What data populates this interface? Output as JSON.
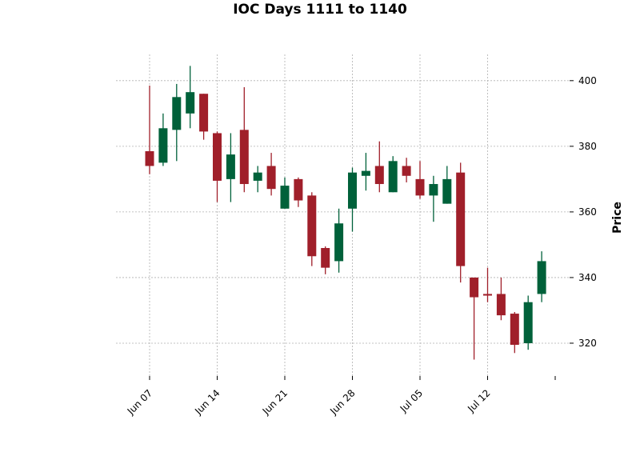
{
  "chart_data": {
    "type": "candlestick",
    "title": "IOC Days 1111 to 1140",
    "xlabel": "",
    "ylabel": "Price",
    "ylim": [
      310,
      408
    ],
    "yticks": [
      320,
      340,
      360,
      380,
      400
    ],
    "xtick_labels": [
      {
        "label": "Jun 07",
        "date": "2021-06-07"
      },
      {
        "label": "Jun 14",
        "date": "2021-06-14"
      },
      {
        "label": "Jun 21",
        "date": "2021-06-21"
      },
      {
        "label": "Jun 28",
        "date": "2021-06-28"
      },
      {
        "label": "Jul 05",
        "date": "2021-07-05"
      },
      {
        "label": "Jul 12",
        "date": "2021-07-12"
      }
    ],
    "grid": true,
    "colors": {
      "up": "#00613a",
      "down": "#a01f2a",
      "grid": "#b0b0b0"
    },
    "candles": [
      {
        "date": "2021-06-07",
        "open": 378.5,
        "high": 398.5,
        "low": 371.5,
        "close": 374.0
      },
      {
        "date": "2021-06-08",
        "open": 375.0,
        "high": 390.0,
        "low": 374.0,
        "close": 385.5
      },
      {
        "date": "2021-06-09",
        "open": 385.0,
        "high": 399.0,
        "low": 375.5,
        "close": 395.0
      },
      {
        "date": "2021-06-10",
        "open": 390.0,
        "high": 404.5,
        "low": 385.5,
        "close": 396.5
      },
      {
        "date": "2021-06-11",
        "open": 396.0,
        "high": 396.0,
        "low": 382.0,
        "close": 384.5
      },
      {
        "date": "2021-06-14",
        "open": 384.0,
        "high": 384.5,
        "low": 363.0,
        "close": 369.5
      },
      {
        "date": "2021-06-15",
        "open": 370.0,
        "high": 384.0,
        "low": 363.0,
        "close": 377.5
      },
      {
        "date": "2021-06-16",
        "open": 385.0,
        "high": 398.0,
        "low": 366.0,
        "close": 368.5
      },
      {
        "date": "2021-06-17",
        "open": 369.5,
        "high": 374.0,
        "low": 366.0,
        "close": 372.0
      },
      {
        "date": "2021-06-18",
        "open": 374.0,
        "high": 378.0,
        "low": 365.0,
        "close": 367.0
      },
      {
        "date": "2021-06-21",
        "open": 361.0,
        "high": 370.5,
        "low": 361.0,
        "close": 368.0
      },
      {
        "date": "2021-06-22",
        "open": 370.0,
        "high": 370.5,
        "low": 361.5,
        "close": 363.5
      },
      {
        "date": "2021-06-23",
        "open": 365.0,
        "high": 366.0,
        "low": 343.5,
        "close": 346.5
      },
      {
        "date": "2021-06-24",
        "open": 349.0,
        "high": 349.5,
        "low": 341.0,
        "close": 343.0
      },
      {
        "date": "2021-06-25",
        "open": 345.0,
        "high": 361.0,
        "low": 341.5,
        "close": 356.5
      },
      {
        "date": "2021-06-28",
        "open": 361.0,
        "high": 373.5,
        "low": 354.0,
        "close": 372.0
      },
      {
        "date": "2021-06-29",
        "open": 371.0,
        "high": 378.0,
        "low": 366.5,
        "close": 372.5
      },
      {
        "date": "2021-06-30",
        "open": 374.0,
        "high": 381.5,
        "low": 366.0,
        "close": 368.5
      },
      {
        "date": "2021-07-01",
        "open": 366.0,
        "high": 377.0,
        "low": 366.0,
        "close": 375.5
      },
      {
        "date": "2021-07-02",
        "open": 374.0,
        "high": 376.5,
        "low": 369.0,
        "close": 371.0
      },
      {
        "date": "2021-07-05",
        "open": 370.0,
        "high": 375.5,
        "low": 364.0,
        "close": 365.0
      },
      {
        "date": "2021-07-06",
        "open": 365.0,
        "high": 371.0,
        "low": 357.0,
        "close": 368.5
      },
      {
        "date": "2021-07-07",
        "open": 362.5,
        "high": 374.0,
        "low": 362.5,
        "close": 370.0
      },
      {
        "date": "2021-07-08",
        "open": 372.0,
        "high": 375.0,
        "low": 338.5,
        "close": 343.5
      },
      {
        "date": "2021-07-09",
        "open": 340.0,
        "high": 340.0,
        "low": 315.0,
        "close": 334.0
      },
      {
        "date": "2021-07-12",
        "open": 335.0,
        "high": 343.0,
        "low": 332.5,
        "close": 334.5
      },
      {
        "date": "2021-07-13",
        "open": 335.0,
        "high": 340.0,
        "low": 327.0,
        "close": 328.5
      },
      {
        "date": "2021-07-14",
        "open": 329.0,
        "high": 329.5,
        "low": 317.0,
        "close": 319.5
      },
      {
        "date": "2021-07-15",
        "open": 320.0,
        "high": 334.5,
        "low": 318.0,
        "close": 332.5
      },
      {
        "date": "2021-07-16",
        "open": 335.0,
        "high": 348.0,
        "low": 332.5,
        "close": 345.0
      }
    ]
  }
}
